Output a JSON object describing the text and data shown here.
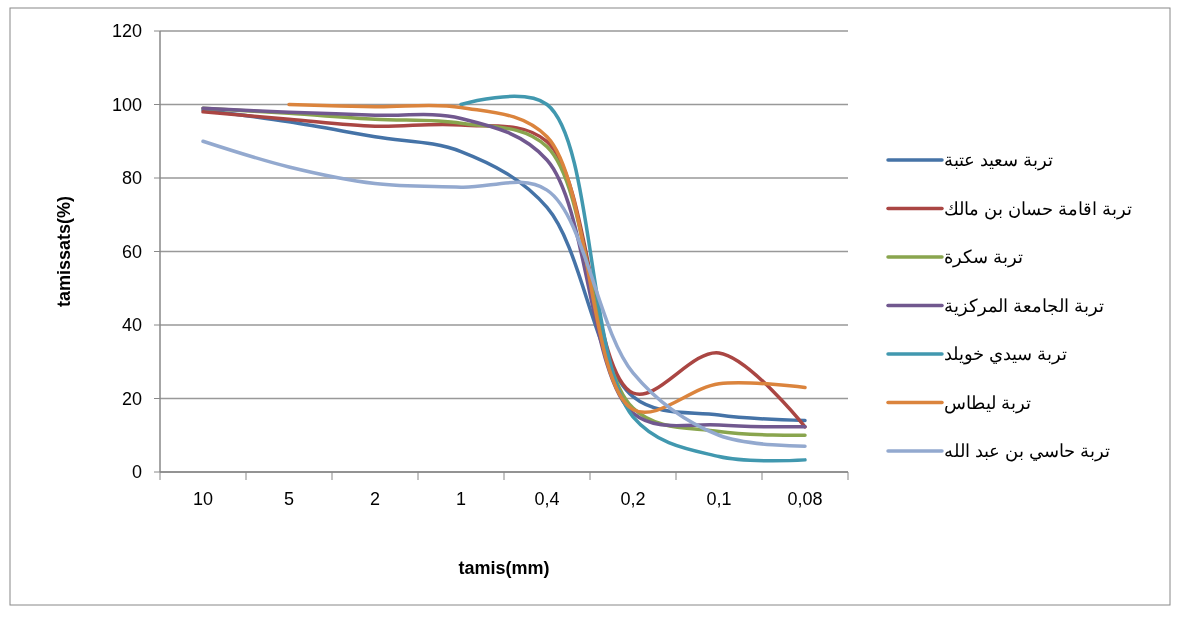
{
  "chart_data": {
    "type": "line",
    "xlabel": "tamis(mm)",
    "ylabel": "tamissats(%)",
    "categories": [
      "10",
      "5",
      "2",
      "1",
      "0,4",
      "0,2",
      "0,1",
      "0,08"
    ],
    "ylim": [
      0,
      120
    ],
    "yticks": [
      0,
      20,
      40,
      60,
      80,
      100,
      120
    ],
    "grid": "y",
    "legend": "right",
    "line_style": "solid",
    "marker": "none",
    "series": [
      {
        "name": "تربة سعيد عتبة",
        "color": "#4573a7",
        "values": [
          98.5,
          95.3,
          91.2,
          87.2,
          72,
          20.5,
          15.5,
          14
        ]
      },
      {
        "name": "تربة اقامة حسان بن مالك",
        "color": "#aa4643",
        "values": [
          98,
          96,
          94.1,
          94.4,
          89.9,
          21.5,
          32.4,
          12.3
        ]
      },
      {
        "name": "تربة سكرة",
        "color": "#89a54e",
        "values": [
          99,
          97.6,
          96,
          94.9,
          88.5,
          17.4,
          11,
          10
        ]
      },
      {
        "name": "تربة الجامعة المركزية",
        "color": "#71588f",
        "values": [
          99,
          97.9,
          97.1,
          96.2,
          84.9,
          16,
          12.8,
          12.3
        ]
      },
      {
        "name": "تربة سيدي خويلد",
        "color": "#4198af",
        "values": [
          null,
          null,
          null,
          100,
          100,
          15,
          4.2,
          3.3
        ]
      },
      {
        "name": "تربة ليطاس",
        "color": "#db843d",
        "values": [
          null,
          100,
          99.4,
          99.2,
          91.2,
          17,
          24,
          23
        ]
      },
      {
        "name": "تربة حاسي بن عبد الله",
        "color": "#93a9cf",
        "values": [
          90,
          83,
          78.5,
          77.5,
          76.7,
          27,
          10,
          7
        ]
      }
    ]
  }
}
